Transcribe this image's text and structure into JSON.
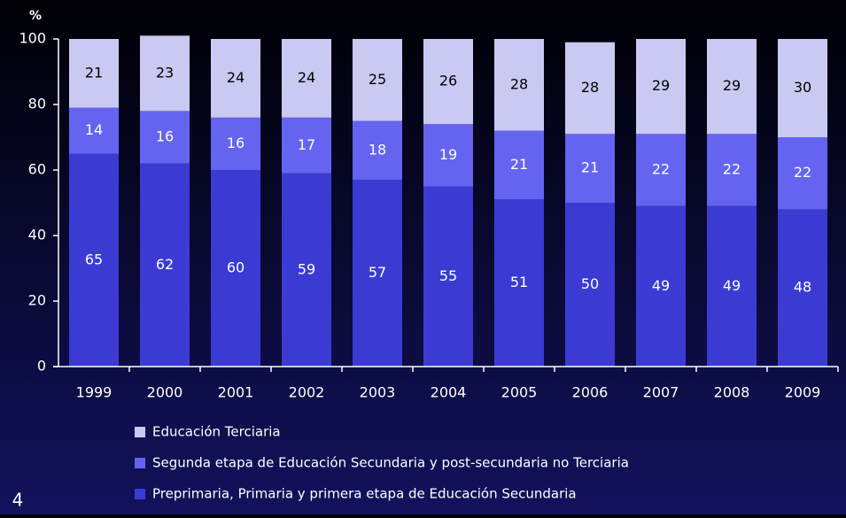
{
  "chart_data": {
    "type": "bar",
    "stacked": true,
    "y_label": "%",
    "page_number": "4",
    "categories": [
      "1999",
      "2000",
      "2001",
      "2002",
      "2003",
      "2004",
      "2005",
      "2006",
      "2007",
      "2008",
      "2009"
    ],
    "series": [
      {
        "name": "Preprimaria, Primaria y primera etapa de Educación Secundaria",
        "color": "#3b3bd3",
        "label_color": "#ffffff",
        "values": [
          65,
          62,
          60,
          59,
          57,
          55,
          51,
          50,
          49,
          49,
          48
        ]
      },
      {
        "name": "Segunda etapa de Educación Secundaria y post-secundaria no Terciaria",
        "color": "#6464f0",
        "label_color": "#ffffff",
        "values": [
          14,
          16,
          16,
          17,
          18,
          19,
          21,
          21,
          22,
          22,
          22
        ]
      },
      {
        "name": "Educación Terciaria",
        "color": "#c9c9f2",
        "label_color": "#000000",
        "values": [
          21,
          23,
          24,
          24,
          25,
          26,
          28,
          28,
          29,
          29,
          30
        ]
      }
    ],
    "ylim": [
      0,
      100
    ],
    "yticks": [
      0,
      20,
      40,
      60,
      80,
      100
    ]
  }
}
